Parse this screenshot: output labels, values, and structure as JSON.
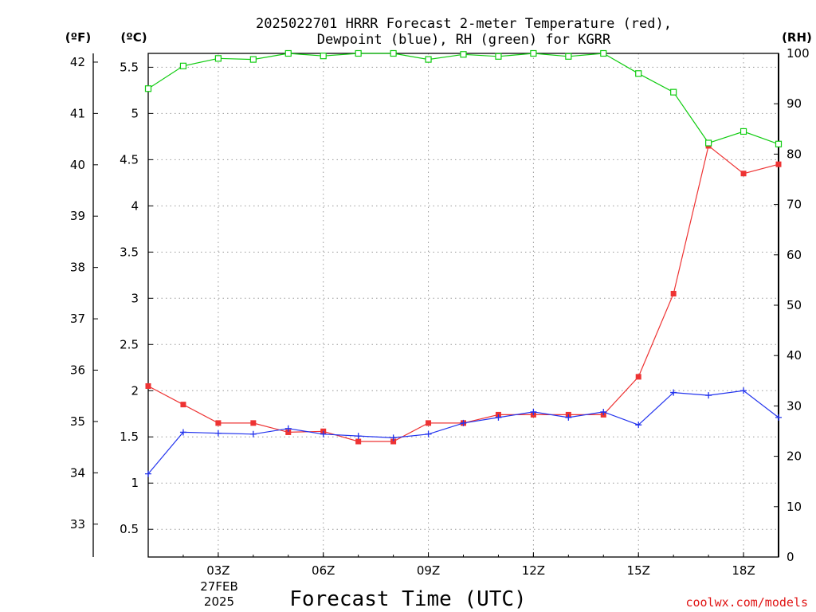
{
  "chart_data": {
    "type": "line",
    "title_line1": "2025022701 HRRR Forecast 2-meter Temperature (red),",
    "title_line2": "Dewpoint (blue), RH (green) for KGRR",
    "xlabel": "Forecast Time (UTC)",
    "credit": "coolwx.com/models",
    "unit_f": "(ºF)",
    "unit_c": "(ºC)",
    "unit_rh": "(RH)",
    "hours": [
      1,
      2,
      3,
      4,
      5,
      6,
      7,
      8,
      9,
      10,
      11,
      12,
      13,
      14,
      15,
      16,
      17,
      18,
      19
    ],
    "x_tick_labels": [
      "03Z",
      "06Z",
      "09Z",
      "12Z",
      "15Z",
      "18Z"
    ],
    "x_tick_hours": [
      3,
      6,
      9,
      12,
      15,
      18
    ],
    "date_day": "27FEB",
    "date_year": "2025",
    "xlim": [
      1,
      19
    ],
    "ylim_c": [
      0.2,
      5.65
    ],
    "ylim_rh": [
      0,
      100
    ],
    "yticks_c": [
      "0.5",
      "1",
      "1.5",
      "2",
      "2.5",
      "3",
      "3.5",
      "4",
      "4.5",
      "5",
      "5.5"
    ],
    "yticks_f": [
      "33",
      "34",
      "35",
      "36",
      "37",
      "38",
      "39",
      "40",
      "41",
      "42"
    ],
    "yticks_rh": [
      "0",
      "10",
      "20",
      "30",
      "40",
      "50",
      "60",
      "70",
      "80",
      "90",
      "100"
    ],
    "grid": true,
    "colors": {
      "temperature": "#ee3333",
      "dewpoint": "#2233ee",
      "rh": "#11cc11",
      "credit": "#e01515"
    },
    "series": [
      {
        "name": "Temperature",
        "unit": "C",
        "marker": "filled-square",
        "values": [
          2.05,
          1.85,
          1.65,
          1.65,
          1.55,
          1.56,
          1.45,
          1.45,
          1.65,
          1.65,
          1.74,
          1.74,
          1.74,
          1.74,
          2.15,
          3.05,
          4.65,
          4.35,
          4.45
        ]
      },
      {
        "name": "Dewpoint",
        "unit": "C",
        "marker": "plus",
        "values": [
          1.1,
          1.55,
          1.54,
          1.53,
          1.59,
          1.53,
          1.51,
          1.49,
          1.53,
          1.65,
          1.71,
          1.77,
          1.71,
          1.77,
          1.63,
          1.98,
          1.95,
          2.0,
          1.71
        ]
      },
      {
        "name": "RH",
        "unit": "%",
        "marker": "open-square",
        "values": [
          93,
          97.5,
          99,
          98.8,
          100,
          99.5,
          100,
          100,
          98.8,
          99.8,
          99.4,
          100,
          99.4,
          100,
          96,
          92.3,
          82.2,
          84.5,
          82
        ]
      }
    ]
  }
}
